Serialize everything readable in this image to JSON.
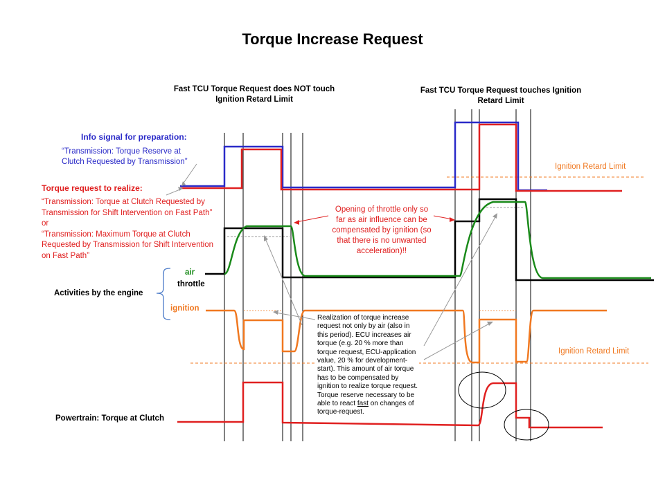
{
  "title": "Torque Increase Request",
  "headers": {
    "left": [
      "Fast TCU Torque Request does NOT touch",
      "Ignition  Retard Limit"
    ],
    "right": [
      "Fast TCU Torque Request touches Ignition",
      "Retard Limit"
    ]
  },
  "info_signal": {
    "heading": "Info signal for preparation:",
    "lines": [
      "“Transmission: Torque Reserve at",
      "Clutch Requested by Transmission”"
    ]
  },
  "torque_request": {
    "heading": "Torque request to realize:",
    "lines": [
      "“Transmission: Torque at Clutch Requested by",
      "Transmission for Shift Intervention on Fast Path”",
      "or",
      "“Transmission: Maximum Torque at Clutch",
      "Requested by Transmission for Shift Intervention",
      "on Fast Path”"
    ]
  },
  "engine": {
    "air": "air",
    "throttle": "throttle",
    "activities": "Activities by the engine",
    "ignition": "ignition"
  },
  "powertrain": "Powertrain: Torque at Clutch",
  "limits": {
    "upper": "Ignition Retard Limit",
    "lower": "Ignition Retard Limit"
  },
  "callout_throttle": [
    "Opening of throttle only so",
    "far as air influence can be",
    "compensated by ignition (so",
    "that there is no unwanted",
    "acceleration)!!"
  ],
  "note": [
    "Realization of torque increase",
    "request not only by air (also in",
    "this period). ECU  increases air",
    "torque (e.g. 20 % more than",
    "torque request, ECU-application",
    "value, 20 % for development-",
    "start). This amount of air torque",
    "has to be compensated by",
    "ignition to realize torque request.",
    "Torque reserve necessary to be",
    "able to react ",
    "fast",
    " on changes of",
    "torque-request."
  ],
  "colors": {
    "info": "#2a2ac8",
    "request": "#e02020",
    "air": "#1a8a1a",
    "throttle": "#000000",
    "ignition": "#f07820"
  }
}
